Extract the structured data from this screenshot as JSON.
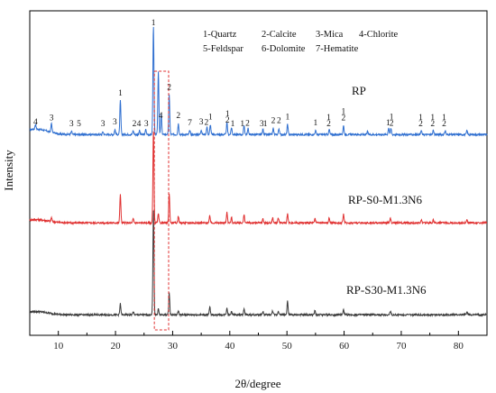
{
  "chart_data": {
    "type": "line",
    "title": "",
    "xlabel": "2θ/degree",
    "ylabel": "Intensity",
    "xlim": [
      5,
      85
    ],
    "x_ticks": [
      10,
      20,
      30,
      40,
      50,
      60,
      70,
      80
    ],
    "y_ticks_shown": false,
    "grid": false,
    "legend": {
      "placement": "top-right",
      "entries": [
        "1-Quartz",
        "2-Calcite",
        "3-Mica",
        "4-Chlorite",
        "5-Feldspar",
        "6-Dolomite",
        "7-Hematite"
      ]
    },
    "colors": {
      "RP": "#2f6fd0",
      "RP-S0-M1.3N6": "#e03030",
      "RP-S30-M1.3N6": "#3a3a3a",
      "box": "#e03030"
    },
    "series": [
      {
        "name": "RP",
        "peaks": [
          {
            "x": 6.0,
            "h": 0.5
          },
          {
            "x": 8.8,
            "h": 0.9
          },
          {
            "x": 12.3,
            "h": 0.3
          },
          {
            "x": 17.8,
            "h": 0.3
          },
          {
            "x": 19.9,
            "h": 0.5
          },
          {
            "x": 20.85,
            "h": 3.4
          },
          {
            "x": 23.1,
            "h": 0.4
          },
          {
            "x": 24.2,
            "h": 0.4
          },
          {
            "x": 25.3,
            "h": 0.5
          },
          {
            "x": 26.64,
            "h": 11.0
          },
          {
            "x": 27.5,
            "h": 6.4
          },
          {
            "x": 28.0,
            "h": 2.0
          },
          {
            "x": 29.4,
            "h": 4.0
          },
          {
            "x": 31.0,
            "h": 1.1
          },
          {
            "x": 33.0,
            "h": 0.4
          },
          {
            "x": 35.0,
            "h": 0.5
          },
          {
            "x": 36.0,
            "h": 0.8
          },
          {
            "x": 36.6,
            "h": 1.0
          },
          {
            "x": 39.5,
            "h": 1.2
          },
          {
            "x": 40.3,
            "h": 0.7
          },
          {
            "x": 42.5,
            "h": 0.9
          },
          {
            "x": 43.2,
            "h": 0.6
          },
          {
            "x": 45.8,
            "h": 0.5
          },
          {
            "x": 47.6,
            "h": 0.6
          },
          {
            "x": 48.6,
            "h": 0.6
          },
          {
            "x": 50.1,
            "h": 1.0
          },
          {
            "x": 55.0,
            "h": 0.4
          },
          {
            "x": 57.4,
            "h": 0.5
          },
          {
            "x": 59.9,
            "h": 0.9
          },
          {
            "x": 64.1,
            "h": 0.3
          },
          {
            "x": 67.8,
            "h": 0.7
          },
          {
            "x": 68.2,
            "h": 0.6
          },
          {
            "x": 73.5,
            "h": 0.4
          },
          {
            "x": 75.6,
            "h": 0.4
          },
          {
            "x": 77.7,
            "h": 0.4
          },
          {
            "x": 81.5,
            "h": 0.4
          }
        ]
      },
      {
        "name": "RP-S0-M1.3N6",
        "peaks": [
          {
            "x": 8.8,
            "h": 0.4
          },
          {
            "x": 20.85,
            "h": 2.9
          },
          {
            "x": 23.1,
            "h": 0.4
          },
          {
            "x": 26.64,
            "h": 9.3
          },
          {
            "x": 27.5,
            "h": 0.9
          },
          {
            "x": 29.4,
            "h": 2.9
          },
          {
            "x": 31.0,
            "h": 0.7
          },
          {
            "x": 36.5,
            "h": 0.7
          },
          {
            "x": 39.5,
            "h": 1.1
          },
          {
            "x": 40.3,
            "h": 0.5
          },
          {
            "x": 42.5,
            "h": 0.8
          },
          {
            "x": 45.8,
            "h": 0.4
          },
          {
            "x": 47.5,
            "h": 0.5
          },
          {
            "x": 48.5,
            "h": 0.5
          },
          {
            "x": 50.1,
            "h": 0.9
          },
          {
            "x": 54.9,
            "h": 0.4
          },
          {
            "x": 57.4,
            "h": 0.5
          },
          {
            "x": 59.9,
            "h": 0.9
          },
          {
            "x": 68.1,
            "h": 0.5
          },
          {
            "x": 73.5,
            "h": 0.3
          },
          {
            "x": 75.6,
            "h": 0.3
          },
          {
            "x": 81.5,
            "h": 0.3
          }
        ]
      },
      {
        "name": "RP-S30-M1.3N6",
        "peaks": [
          {
            "x": 20.85,
            "h": 1.1
          },
          {
            "x": 23.1,
            "h": 0.3
          },
          {
            "x": 26.64,
            "h": 10.5
          },
          {
            "x": 27.5,
            "h": 0.6
          },
          {
            "x": 29.4,
            "h": 2.2
          },
          {
            "x": 31.0,
            "h": 0.4
          },
          {
            "x": 36.5,
            "h": 0.8
          },
          {
            "x": 39.5,
            "h": 0.7
          },
          {
            "x": 40.3,
            "h": 0.4
          },
          {
            "x": 42.5,
            "h": 0.6
          },
          {
            "x": 45.8,
            "h": 0.3
          },
          {
            "x": 47.5,
            "h": 0.4
          },
          {
            "x": 48.5,
            "h": 0.4
          },
          {
            "x": 50.1,
            "h": 1.4
          },
          {
            "x": 54.9,
            "h": 0.4
          },
          {
            "x": 59.9,
            "h": 0.5
          },
          {
            "x": 68.1,
            "h": 0.4
          },
          {
            "x": 81.5,
            "h": 0.3
          }
        ]
      }
    ],
    "peak_labels": [
      {
        "x": 6.0,
        "text": "4"
      },
      {
        "x": 8.8,
        "text": "3"
      },
      {
        "x": 12.3,
        "text": "3"
      },
      {
        "x": 13.6,
        "text": "5"
      },
      {
        "x": 17.8,
        "text": "3"
      },
      {
        "x": 19.9,
        "text": "3"
      },
      {
        "x": 20.85,
        "text": "1"
      },
      {
        "x": 23.3,
        "text": "2"
      },
      {
        "x": 24.1,
        "text": "4"
      },
      {
        "x": 25.4,
        "text": "3"
      },
      {
        "x": 26.64,
        "text": "1"
      },
      {
        "x": 27.9,
        "text": "4"
      },
      {
        "x": 29.4,
        "text": "2"
      },
      {
        "x": 31.0,
        "text": "2"
      },
      {
        "x": 33.0,
        "text": "7"
      },
      {
        "x": 35.0,
        "text": "3"
      },
      {
        "x": 35.9,
        "text": "2"
      },
      {
        "x": 36.6,
        "text": "1"
      },
      {
        "x": 39.6,
        "text": "2"
      },
      {
        "x": 39.6,
        "text": "1"
      },
      {
        "x": 40.5,
        "text": "1"
      },
      {
        "x": 42.2,
        "text": "1"
      },
      {
        "x": 43.1,
        "text": "2"
      },
      {
        "x": 45.6,
        "text": "3"
      },
      {
        "x": 46.2,
        "text": "1"
      },
      {
        "x": 47.6,
        "text": "2"
      },
      {
        "x": 48.6,
        "text": "2"
      },
      {
        "x": 50.1,
        "text": "1"
      },
      {
        "x": 55.0,
        "text": "1"
      },
      {
        "x": 57.3,
        "text": "2"
      },
      {
        "x": 57.3,
        "text": "1"
      },
      {
        "x": 59.9,
        "text": "2"
      },
      {
        "x": 59.9,
        "text": "1"
      },
      {
        "x": 67.7,
        "text": "1"
      },
      {
        "x": 68.3,
        "text": "2"
      },
      {
        "x": 68.3,
        "text": "1"
      },
      {
        "x": 73.4,
        "text": "2"
      },
      {
        "x": 73.4,
        "text": "1"
      },
      {
        "x": 75.5,
        "text": "2"
      },
      {
        "x": 75.5,
        "text": "1"
      },
      {
        "x": 77.5,
        "text": "2"
      },
      {
        "x": 77.5,
        "text": "1"
      }
    ],
    "highlight_box": {
      "x_range": [
        26.8,
        29.3
      ]
    }
  }
}
